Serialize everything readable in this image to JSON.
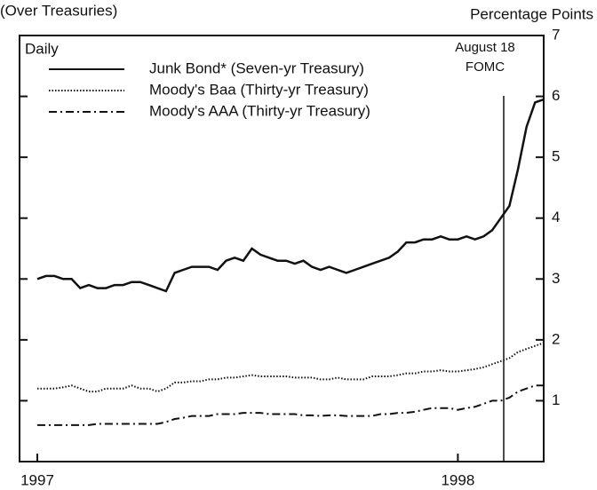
{
  "chart_data": {
    "type": "line",
    "subtitle": "(Over Treasuries)",
    "y_axis_label": "Percentage Points",
    "frequency_label": "Daily",
    "annotation": [
      "August 18",
      "FOMC"
    ],
    "categories": [
      null,
      null,
      null,
      null,
      null,
      null,
      null,
      null,
      null,
      null,
      null,
      null,
      null,
      null,
      null,
      null,
      null,
      null,
      null,
      null,
      null,
      null,
      null,
      null,
      null,
      null,
      null,
      null,
      null,
      null,
      null,
      null,
      null,
      null,
      null,
      null,
      null,
      null,
      null,
      null,
      null,
      null,
      null,
      null,
      null,
      null,
      null,
      null,
      null,
      null,
      null,
      null,
      null,
      null,
      null,
      null,
      null,
      null,
      null,
      null
    ],
    "xticks": [
      {
        "value": 0,
        "label": "1997"
      },
      {
        "value": 49,
        "label": "1998"
      }
    ],
    "ylim": [
      0,
      7
    ],
    "yticks": [
      1,
      2,
      3,
      4,
      5,
      6,
      7
    ],
    "series": [
      {
        "name": "Junk Bond* (Seven-yr Treasury)",
        "color": "#111111",
        "style": "solid",
        "values": [
          3.0,
          3.05,
          3.05,
          3.0,
          3.0,
          2.85,
          2.9,
          2.85,
          2.85,
          2.9,
          2.9,
          2.95,
          2.95,
          2.9,
          2.85,
          2.8,
          3.1,
          3.15,
          3.2,
          3.2,
          3.2,
          3.15,
          3.3,
          3.35,
          3.3,
          3.5,
          3.4,
          3.35,
          3.3,
          3.3,
          3.25,
          3.3,
          3.2,
          3.15,
          3.2,
          3.15,
          3.1,
          3.15,
          3.2,
          3.25,
          3.3,
          3.35,
          3.45,
          3.6,
          3.6,
          3.65,
          3.65,
          3.7,
          3.65,
          3.65,
          3.7,
          3.65,
          3.7,
          3.8,
          4.0,
          4.2,
          4.8,
          5.5,
          5.9,
          5.95
        ]
      },
      {
        "name": "Moody's Baa (Thirty-yr Treasury)",
        "color": "#111111",
        "style": "dotted",
        "values": [
          1.2,
          1.2,
          1.2,
          1.22,
          1.25,
          1.2,
          1.15,
          1.15,
          1.2,
          1.2,
          1.2,
          1.25,
          1.2,
          1.2,
          1.15,
          1.2,
          1.3,
          1.3,
          1.32,
          1.32,
          1.35,
          1.35,
          1.38,
          1.38,
          1.4,
          1.42,
          1.4,
          1.4,
          1.4,
          1.4,
          1.38,
          1.38,
          1.38,
          1.35,
          1.35,
          1.38,
          1.35,
          1.35,
          1.35,
          1.4,
          1.4,
          1.4,
          1.42,
          1.45,
          1.45,
          1.48,
          1.48,
          1.5,
          1.48,
          1.48,
          1.5,
          1.52,
          1.55,
          1.6,
          1.65,
          1.7,
          1.8,
          1.85,
          1.9,
          1.95
        ]
      },
      {
        "name": "Moody's AAA (Thirty-yr Treasury)",
        "color": "#111111",
        "style": "dashdot",
        "values": [
          0.6,
          0.6,
          0.6,
          0.6,
          0.6,
          0.6,
          0.6,
          0.62,
          0.62,
          0.62,
          0.62,
          0.62,
          0.62,
          0.62,
          0.62,
          0.65,
          0.7,
          0.72,
          0.75,
          0.75,
          0.75,
          0.78,
          0.78,
          0.78,
          0.8,
          0.8,
          0.8,
          0.78,
          0.78,
          0.78,
          0.78,
          0.76,
          0.76,
          0.75,
          0.76,
          0.76,
          0.75,
          0.75,
          0.75,
          0.75,
          0.78,
          0.78,
          0.8,
          0.8,
          0.82,
          0.85,
          0.88,
          0.88,
          0.88,
          0.85,
          0.88,
          0.9,
          0.95,
          1.0,
          1.0,
          1.05,
          1.15,
          1.2,
          1.25,
          1.25
        ]
      }
    ]
  }
}
